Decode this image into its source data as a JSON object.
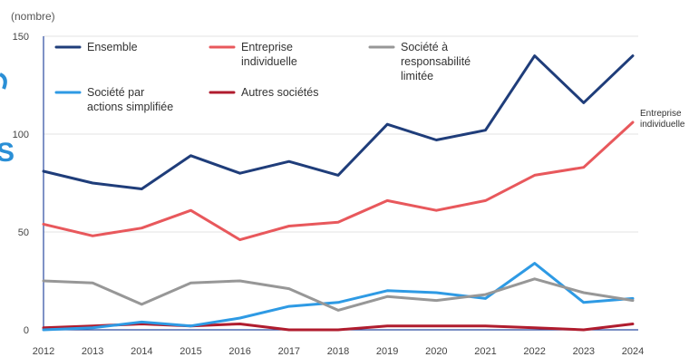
{
  "edge_fragments": [
    "S"
  ],
  "chart_data": {
    "type": "line",
    "ylabel": "(nombre)",
    "ylim": [
      0,
      150
    ],
    "yticks": [
      "0",
      "50",
      "100",
      "150"
    ],
    "x": [
      "2012",
      "2013",
      "2014",
      "2015",
      "2016",
      "2017",
      "2018",
      "2019",
      "2020",
      "2021",
      "2022",
      "2023",
      "2024"
    ],
    "grid": "horizontal",
    "legend_position": "top-left",
    "series": [
      {
        "key": "ensemble",
        "name": "Ensemble",
        "color": "#1f3d7a",
        "values": [
          81,
          75,
          72,
          89,
          80,
          86,
          79,
          105,
          97,
          102,
          140,
          116,
          140
        ]
      },
      {
        "key": "ei",
        "name": "Entreprise individuelle",
        "legend_lines": [
          "Entreprise",
          "individuelle"
        ],
        "color": "#e8585c",
        "values": [
          54,
          48,
          52,
          61,
          46,
          53,
          55,
          66,
          61,
          66,
          79,
          83,
          106
        ]
      },
      {
        "key": "sarl",
        "name": "Société à responsabilité limitée",
        "legend_lines": [
          "Société à",
          "responsabilité",
          "limitée"
        ],
        "color": "#979797",
        "values": [
          25,
          24,
          13,
          24,
          25,
          21,
          10,
          17,
          15,
          18,
          26,
          19,
          15
        ]
      },
      {
        "key": "sas",
        "name": "Société par actions simplifiée",
        "legend_lines": [
          "Société par",
          "actions simplifiée"
        ],
        "color": "#2e9ae4",
        "values": [
          0,
          1,
          4,
          2,
          6,
          12,
          14,
          20,
          19,
          16,
          34,
          14,
          16
        ]
      },
      {
        "key": "autres",
        "name": "Autres sociétés",
        "legend_lines": [
          "Autres sociétés"
        ],
        "color": "#b01c2e",
        "values": [
          1,
          2,
          3,
          2,
          3,
          0,
          0,
          2,
          2,
          2,
          1,
          0,
          3
        ]
      }
    ],
    "annotations": [
      {
        "lines": [
          "Entreprise",
          "individuelle"
        ],
        "series": "ei",
        "at_index": 12
      }
    ]
  }
}
